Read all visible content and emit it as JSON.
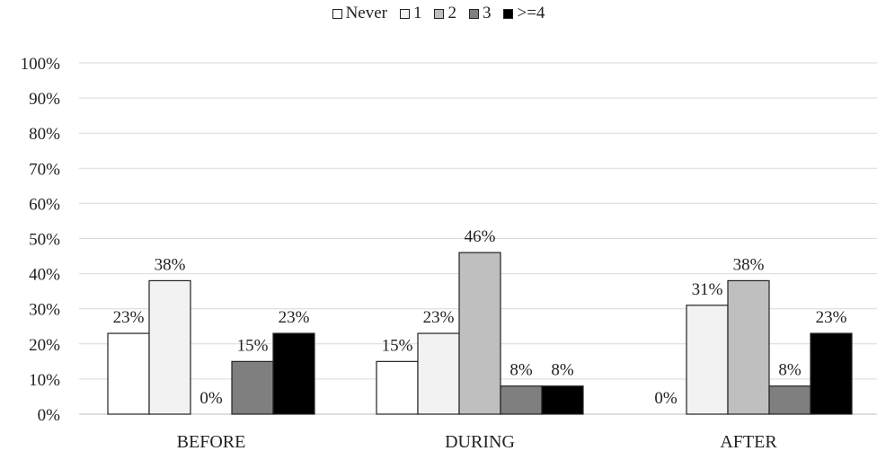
{
  "chart_data": {
    "type": "bar",
    "title": "",
    "xlabel": "",
    "ylabel": "",
    "categories": [
      "BEFORE",
      "DURING",
      "AFTER"
    ],
    "ylim": [
      0,
      100
    ],
    "yticks": [
      "0%",
      "10%",
      "20%",
      "30%",
      "40%",
      "50%",
      "60%",
      "70%",
      "80%",
      "90%",
      "100%"
    ],
    "grid": true,
    "legend_position": "top-center",
    "value_unit": "%",
    "series": [
      {
        "name": "Never",
        "color": "#ffffff",
        "values": [
          23,
          15,
          0
        ]
      },
      {
        "name": "1",
        "color": "#f2f2f2",
        "values": [
          38,
          23,
          31
        ]
      },
      {
        "name": "2",
        "color": "#bfbfbf",
        "values": [
          0,
          46,
          38
        ]
      },
      {
        "name": "3",
        "color": "#7f7f7f",
        "values": [
          15,
          8,
          8
        ]
      },
      {
        "name": ">=4",
        "color": "#000000",
        "values": [
          23,
          8,
          23
        ]
      }
    ]
  }
}
